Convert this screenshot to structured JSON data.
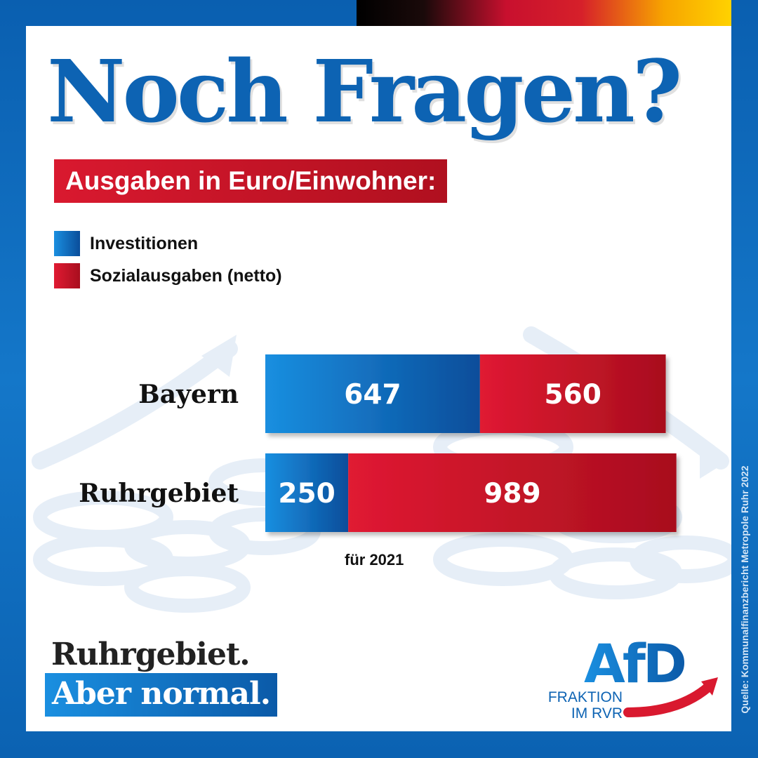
{
  "title": "Noch Fragen?",
  "subtitle": "Ausgaben in Euro/Einwohner:",
  "footnote": "für 2021",
  "slogan": {
    "line1": "Ruhrgebiet.",
    "line2": "Aber normal."
  },
  "logo": {
    "mark": "AfD",
    "line1": "FRAKTION",
    "line2": "IM RVR"
  },
  "source": "Quelle: Kommunalfinanzbericht Metropole Ruhr 2022",
  "colors": {
    "blue": "#0d63b3",
    "red": "#d9192f",
    "flag": [
      "#000000",
      "#c8102e",
      "#ffd200"
    ]
  },
  "chart_data": {
    "type": "bar",
    "orientation": "horizontal",
    "stacked": true,
    "title": "Ausgaben in Euro/Einwohner:",
    "categories": [
      "Bayern",
      "Ruhrgebiet"
    ],
    "series": [
      {
        "name": "Investitionen",
        "values": [
          647,
          250
        ],
        "color": "#0d63b3"
      },
      {
        "name": "Sozialausgaben (netto)",
        "values": [
          560,
          989
        ],
        "color": "#d9192f"
      }
    ],
    "legend": "top-left",
    "grid": false
  }
}
